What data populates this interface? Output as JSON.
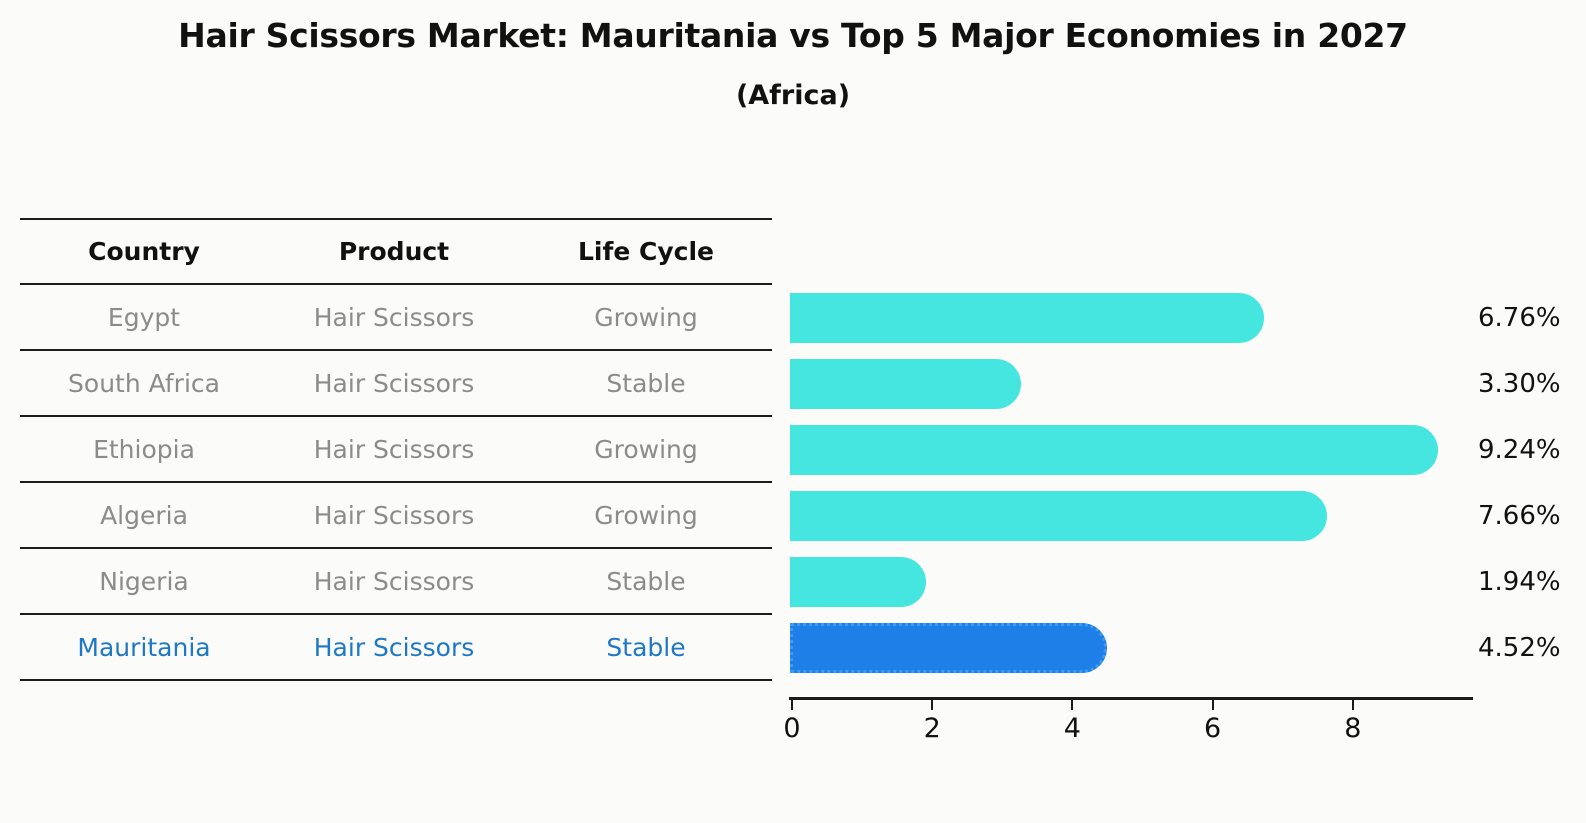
{
  "title": "Hair Scissors Market: Mauritania vs Top 5 Major Economies in 2027",
  "subtitle": "(Africa)",
  "table": {
    "headers": {
      "country": "Country",
      "product": "Product",
      "life_cycle": "Life Cycle"
    }
  },
  "rows": [
    {
      "country": "Egypt",
      "product": "Hair Scissors",
      "life_cycle": "Growing",
      "value": 6.76,
      "label": "6.76%"
    },
    {
      "country": "South Africa",
      "product": "Hair Scissors",
      "life_cycle": "Stable",
      "value": 3.3,
      "label": "3.30%"
    },
    {
      "country": "Ethiopia",
      "product": "Hair Scissors",
      "life_cycle": "Growing",
      "value": 9.24,
      "label": "9.24%"
    },
    {
      "country": "Algeria",
      "product": "Hair Scissors",
      "life_cycle": "Growing",
      "value": 7.66,
      "label": "7.66%"
    },
    {
      "country": "Nigeria",
      "product": "Hair Scissors",
      "life_cycle": "Stable",
      "value": 1.94,
      "label": "1.94%"
    },
    {
      "country": "Mauritania",
      "product": "Hair Scissors",
      "life_cycle": "Stable",
      "value": 4.52,
      "label": "4.52%"
    }
  ],
  "chart_data": {
    "type": "bar",
    "orientation": "horizontal",
    "title": "Hair Scissors Market: Mauritania vs Top 5 Major Economies in 2027",
    "subtitle": "(Africa)",
    "categories": [
      "Egypt",
      "South Africa",
      "Ethiopia",
      "Algeria",
      "Nigeria",
      "Mauritania"
    ],
    "values": [
      6.76,
      3.3,
      9.24,
      7.66,
      1.94,
      4.52
    ],
    "labels": [
      "6.76%",
      "3.30%",
      "9.24%",
      "7.66%",
      "1.94%",
      "4.52%"
    ],
    "xlim": [
      0,
      9.7
    ],
    "x_tick_values": [
      0,
      2,
      4,
      6,
      8
    ],
    "x_tick_labels": [
      "0",
      "2",
      "4",
      "6",
      "8"
    ],
    "grid": false,
    "legend": false,
    "highlight_index": 5,
    "bar_color": "#45e6e0",
    "highlight_bar_color": "#1e7fe8"
  },
  "colors": {
    "background": "#fbfbf9",
    "heading_text": "#111111",
    "row_text": "#8b8b8b",
    "line": "#1c1c1c",
    "bar": "#45e6e0",
    "highlight_bar": "#1e7fe8",
    "highlight_border": "#3d9bf0",
    "highlight_text": "#1e78c8"
  }
}
